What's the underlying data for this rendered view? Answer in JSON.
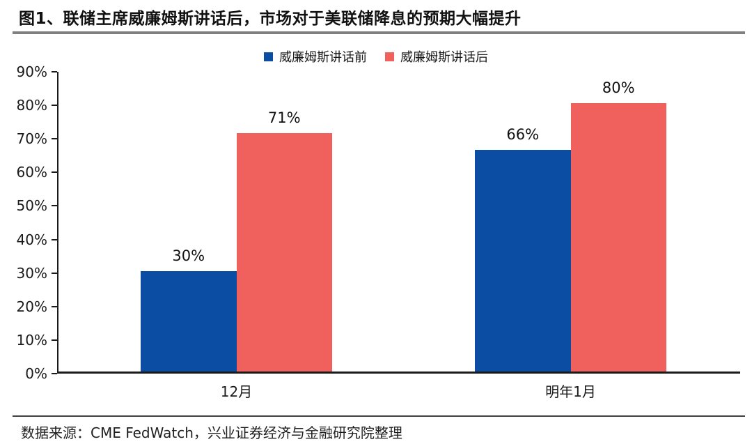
{
  "title": "图1、联储主席威廉姆斯讲话后，市场对于美联储降息的预期大幅提升",
  "source": "数据来源：CME FedWatch，兴业证券经济与金融研究院整理",
  "colors": {
    "before": "#0B4DA2",
    "after": "#F0615E",
    "title_rule": "#7F7F7F",
    "axis": "#1A1A1A"
  },
  "chart_data": {
    "type": "bar",
    "categories": [
      {
        "key": "dec",
        "label": "12月"
      },
      {
        "key": "jan",
        "label": "明年1月"
      }
    ],
    "series": [
      {
        "key": "before",
        "name": "威廉姆斯讲话前",
        "color_key": "before",
        "values": [
          30,
          66
        ]
      },
      {
        "key": "after",
        "name": "威廉姆斯讲话后",
        "color_key": "after",
        "values": [
          71,
          80
        ]
      }
    ],
    "value_label_format": "percent",
    "ylabel": "",
    "xlabel": "",
    "ylim": [
      0,
      90
    ],
    "ytick_step": 10,
    "ytick_format": "percent",
    "legend_position": "top",
    "grid": false
  }
}
